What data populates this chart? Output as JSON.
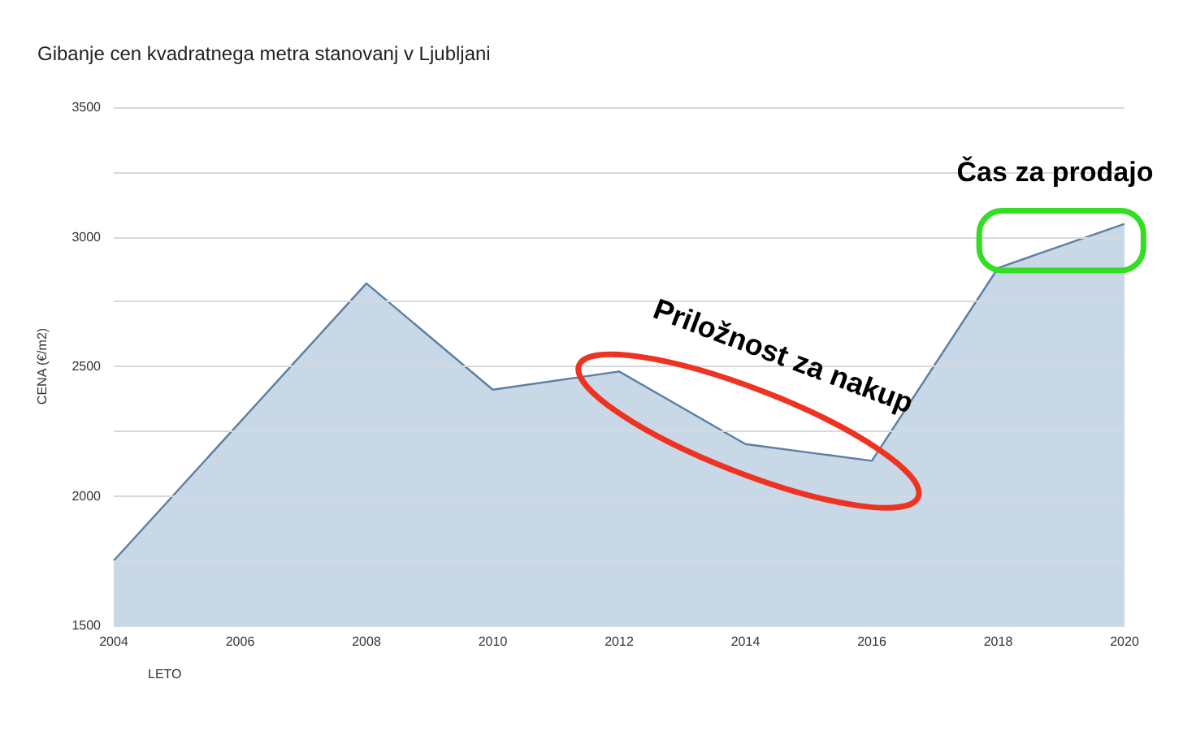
{
  "chart_data": {
    "type": "area",
    "title": "Gibanje cen kvadratnega metra stanovanj v Ljubljani",
    "xlabel": "LETO",
    "ylabel": "CENA (€/m2)",
    "x": [
      2004,
      2008,
      2010,
      2012,
      2014,
      2016,
      2018,
      2020
    ],
    "series": [
      {
        "color": "#5b7fa3",
        "values": [
          1750,
          2820,
          2410,
          2480,
          2200,
          2135,
          2880,
          3050
        ]
      }
    ],
    "xlim": [
      2004,
      2020
    ],
    "xticks": [
      2004,
      2006,
      2008,
      2010,
      2012,
      2014,
      2016,
      2018,
      2020
    ],
    "ylim": [
      1500,
      3500
    ],
    "yticks": [
      1500,
      {
        "value": 1750,
        "label": null
      },
      2000,
      {
        "value": 2250,
        "label": null
      },
      2500,
      {
        "value": 2750,
        "label": null
      },
      3000,
      {
        "value": 3250,
        "label": null
      },
      3500
    ],
    "grid": "y",
    "marker": "none",
    "line_style": "solid",
    "annotations": [
      "Priložnost za nakup",
      "Čas za prodajo"
    ]
  }
}
